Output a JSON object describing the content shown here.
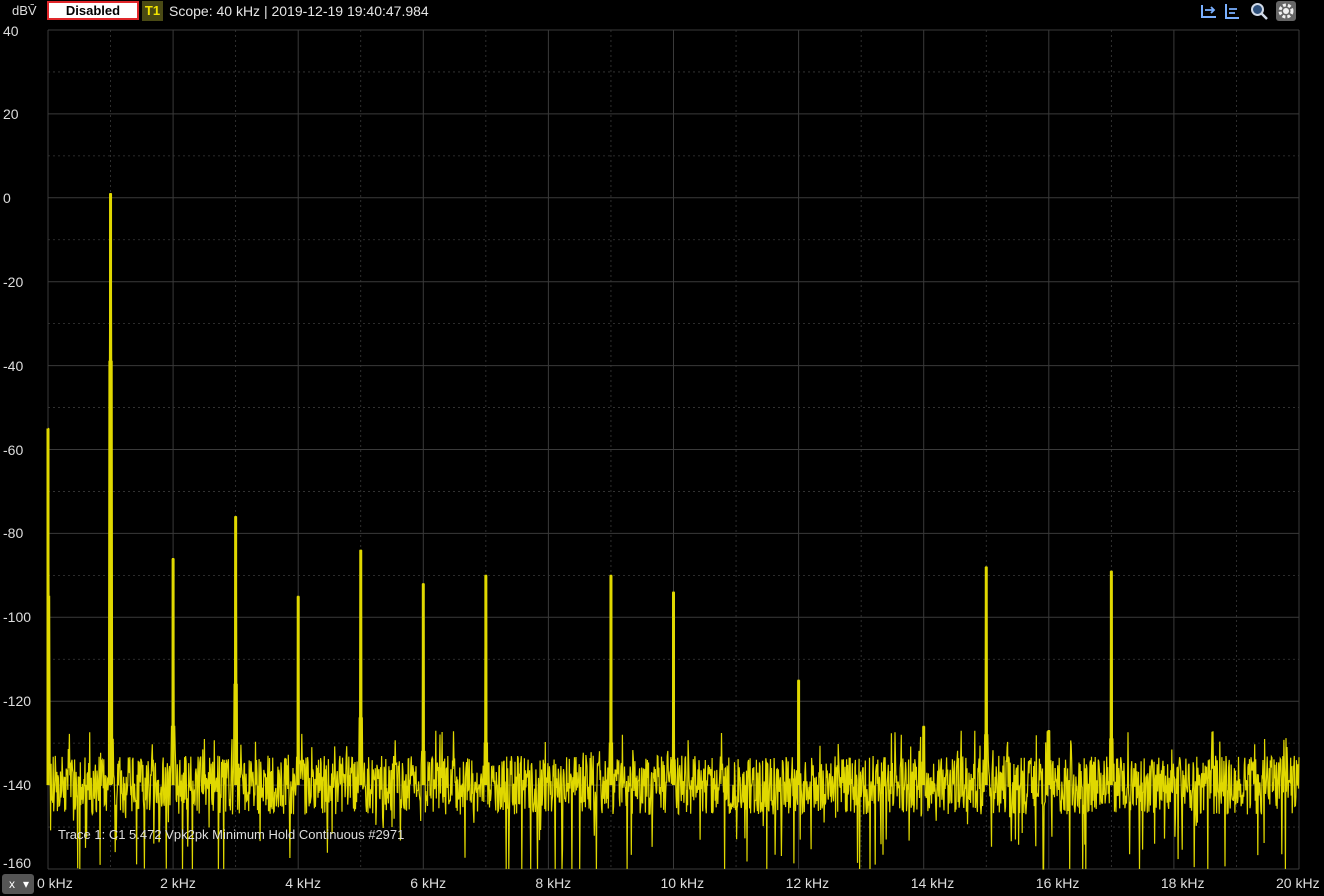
{
  "header": {
    "unit": "dBV̄",
    "status": "Disabled",
    "trace_tag": "T1",
    "scope_text": "Scope: 40 kHz | 2019-12-19 19:40:47.984"
  },
  "toolbar": {
    "icons": [
      "marker-left-icon",
      "marker-align-icon",
      "zoom-icon",
      "gear-icon"
    ]
  },
  "colors": {
    "trace": "#e0d800",
    "grid": "#3a3a3a",
    "bg": "#000000"
  },
  "legend_text": "Trace 1: C1 5.472 Vpk2pk Minimum Hold Continuous #2971",
  "x_button": {
    "label": "x",
    "arrow": "▾"
  },
  "chart_data": {
    "type": "line",
    "title": "",
    "xlabel": "",
    "ylabel": "dBV̄",
    "xlim": [
      0,
      20
    ],
    "ylim": [
      -160,
      40
    ],
    "grid": true,
    "x_ticks": [
      "0 kHz",
      "2 kHz",
      "4 kHz",
      "6 kHz",
      "8 kHz",
      "10 kHz",
      "12 kHz",
      "14 kHz",
      "16 kHz",
      "18 kHz",
      "20 kHz"
    ],
    "y_ticks": [
      "40",
      "20",
      "0",
      "-20",
      "-40",
      "-60",
      "-80",
      "-100",
      "-120",
      "-140",
      "-160"
    ],
    "series": [
      {
        "noise_floor_db": -140,
        "peaks": [
          {
            "x": 0,
            "y": -55
          },
          {
            "x": 1,
            "y": 1
          },
          {
            "x": 2,
            "y": -86
          },
          {
            "x": 3,
            "y": -76
          },
          {
            "x": 4,
            "y": -95
          },
          {
            "x": 5,
            "y": -84
          },
          {
            "x": 6,
            "y": -92
          },
          {
            "x": 7,
            "y": -90
          },
          {
            "x": 9,
            "y": -90
          },
          {
            "x": 10,
            "y": -94
          },
          {
            "x": 12,
            "y": -115
          },
          {
            "x": 14,
            "y": -126
          },
          {
            "x": 15,
            "y": -88
          },
          {
            "x": 16,
            "y": -127
          },
          {
            "x": 17,
            "y": -89
          }
        ]
      }
    ]
  }
}
